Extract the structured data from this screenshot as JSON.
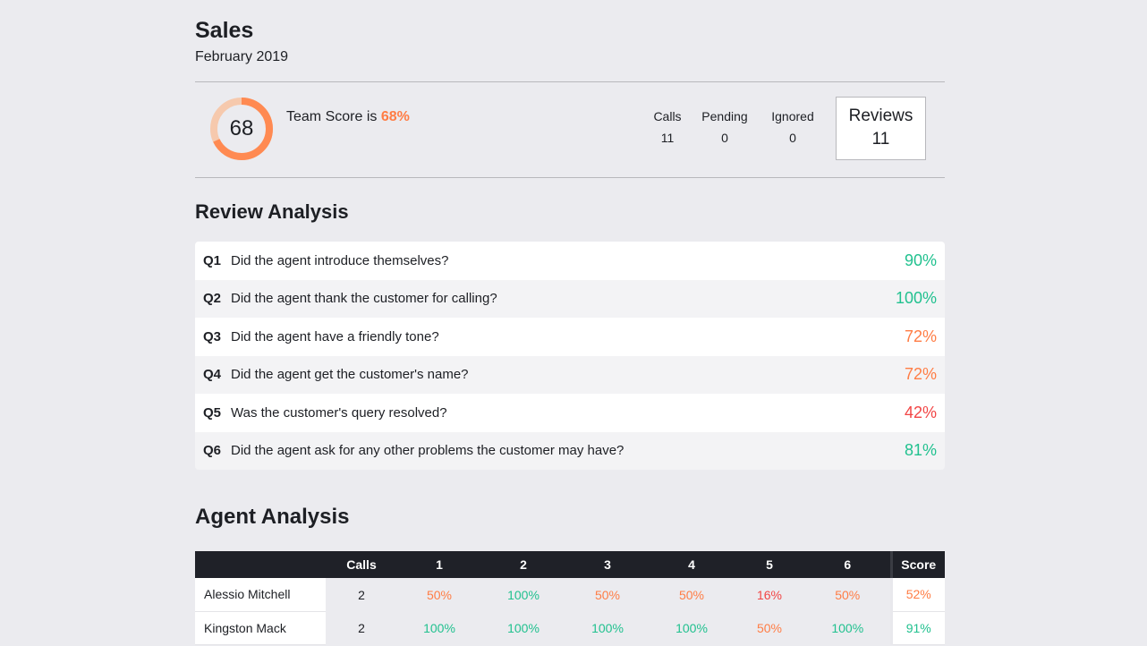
{
  "header": {
    "title": "Sales",
    "subtitle": "February 2019"
  },
  "summary": {
    "team_score_value": "68",
    "team_score_fraction": 0.68,
    "team_score_prefix": "Team Score is ",
    "team_score_pct": "68%",
    "stats": [
      {
        "label": "Calls",
        "value": "11"
      },
      {
        "label": "Pending",
        "value": "0"
      },
      {
        "label": "Ignored",
        "value": "0"
      }
    ],
    "reviews": {
      "label": "Reviews",
      "value": "11"
    }
  },
  "review_analysis": {
    "title": "Review Analysis",
    "questions": [
      {
        "num": "Q1",
        "text": "Did the agent introduce themselves?",
        "pct": "90%",
        "color": "#21c18f"
      },
      {
        "num": "Q2",
        "text": "Did the agent thank the customer for calling?",
        "pct": "100%",
        "color": "#21c18f"
      },
      {
        "num": "Q3",
        "text": "Did the agent have a friendly tone?",
        "pct": "72%",
        "color": "#ff7d45"
      },
      {
        "num": "Q4",
        "text": "Did the agent get the customer's name?",
        "pct": "72%",
        "color": "#ff7d45"
      },
      {
        "num": "Q5",
        "text": "Was the customer's query resolved?",
        "pct": "42%",
        "color": "#f24545"
      },
      {
        "num": "Q6",
        "text": "Did the agent ask for any other problems the customer may have?",
        "pct": "81%",
        "color": "#21c18f"
      }
    ]
  },
  "agent_analysis": {
    "title": "Agent Analysis",
    "headers": [
      "",
      "Calls",
      "1",
      "2",
      "3",
      "4",
      "5",
      "6",
      "Score"
    ],
    "rows": [
      {
        "name": "Alessio Mitchell",
        "calls": "2",
        "q": [
          "50%",
          "100%",
          "50%",
          "50%",
          "16%",
          "50%"
        ],
        "score": "52%"
      },
      {
        "name": "Kingston Mack",
        "calls": "2",
        "q": [
          "100%",
          "100%",
          "100%",
          "100%",
          "50%",
          "100%"
        ],
        "score": "91%"
      }
    ]
  },
  "colors": {
    "accent": "#ff7d45",
    "green": "#21c18f",
    "orange": "#ff7d45",
    "red": "#f24545"
  }
}
